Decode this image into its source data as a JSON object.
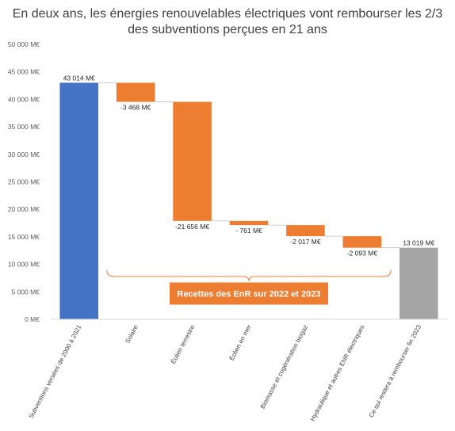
{
  "chart_data": {
    "type": "bar",
    "subtype": "waterfall",
    "title": [
      "En deux ans, les énergies renouvelables électriques vont rembourser les 2/3",
      "des subventions perçues en 21 ans"
    ],
    "ylim": [
      0,
      50000
    ],
    "y_ticks": [
      0,
      5000,
      10000,
      15000,
      20000,
      25000,
      30000,
      35000,
      40000,
      45000,
      50000
    ],
    "y_tick_labels": [
      "0 M€",
      "5 000 M€",
      "10 000 M€",
      "15 000 M€",
      "20 000 M€",
      "25 000 M€",
      "30 000 M€",
      "35 000 M€",
      "40 000 M€",
      "45 000 M€",
      "50 000 M€"
    ],
    "grid": false,
    "legend": "none",
    "categories": [
      "Subventions versées de 2000 à 2021",
      "Solaire",
      "Éolien terrestre",
      "Éolien en mer",
      "Biomasse et cogénération biogaz",
      "Hydraulique et autres ENR électriques",
      "Ce qui restera à rembourser fin 2023"
    ],
    "values": [
      43014,
      -3468,
      -21656,
      -761,
      -2017,
      -2093,
      13019
    ],
    "bar_kinds": [
      "total",
      "delta",
      "delta",
      "delta",
      "delta",
      "delta",
      "total"
    ],
    "data_labels": [
      "43 014 M€",
      "-3 468 M€",
      "-21 656 M€",
      "- 761 M€",
      "-2 017 M€",
      "-2 093 M€",
      "13 019 M€"
    ],
    "colors": {
      "total_start": "#4472c4",
      "delta": "#ed7d31",
      "total_end": "#a5a5a5",
      "annotation": "#ed7d31"
    },
    "annotation": {
      "text": "Recettes des EnR sur 2022 et 2023",
      "spans_categories": [
        1,
        5
      ]
    }
  }
}
